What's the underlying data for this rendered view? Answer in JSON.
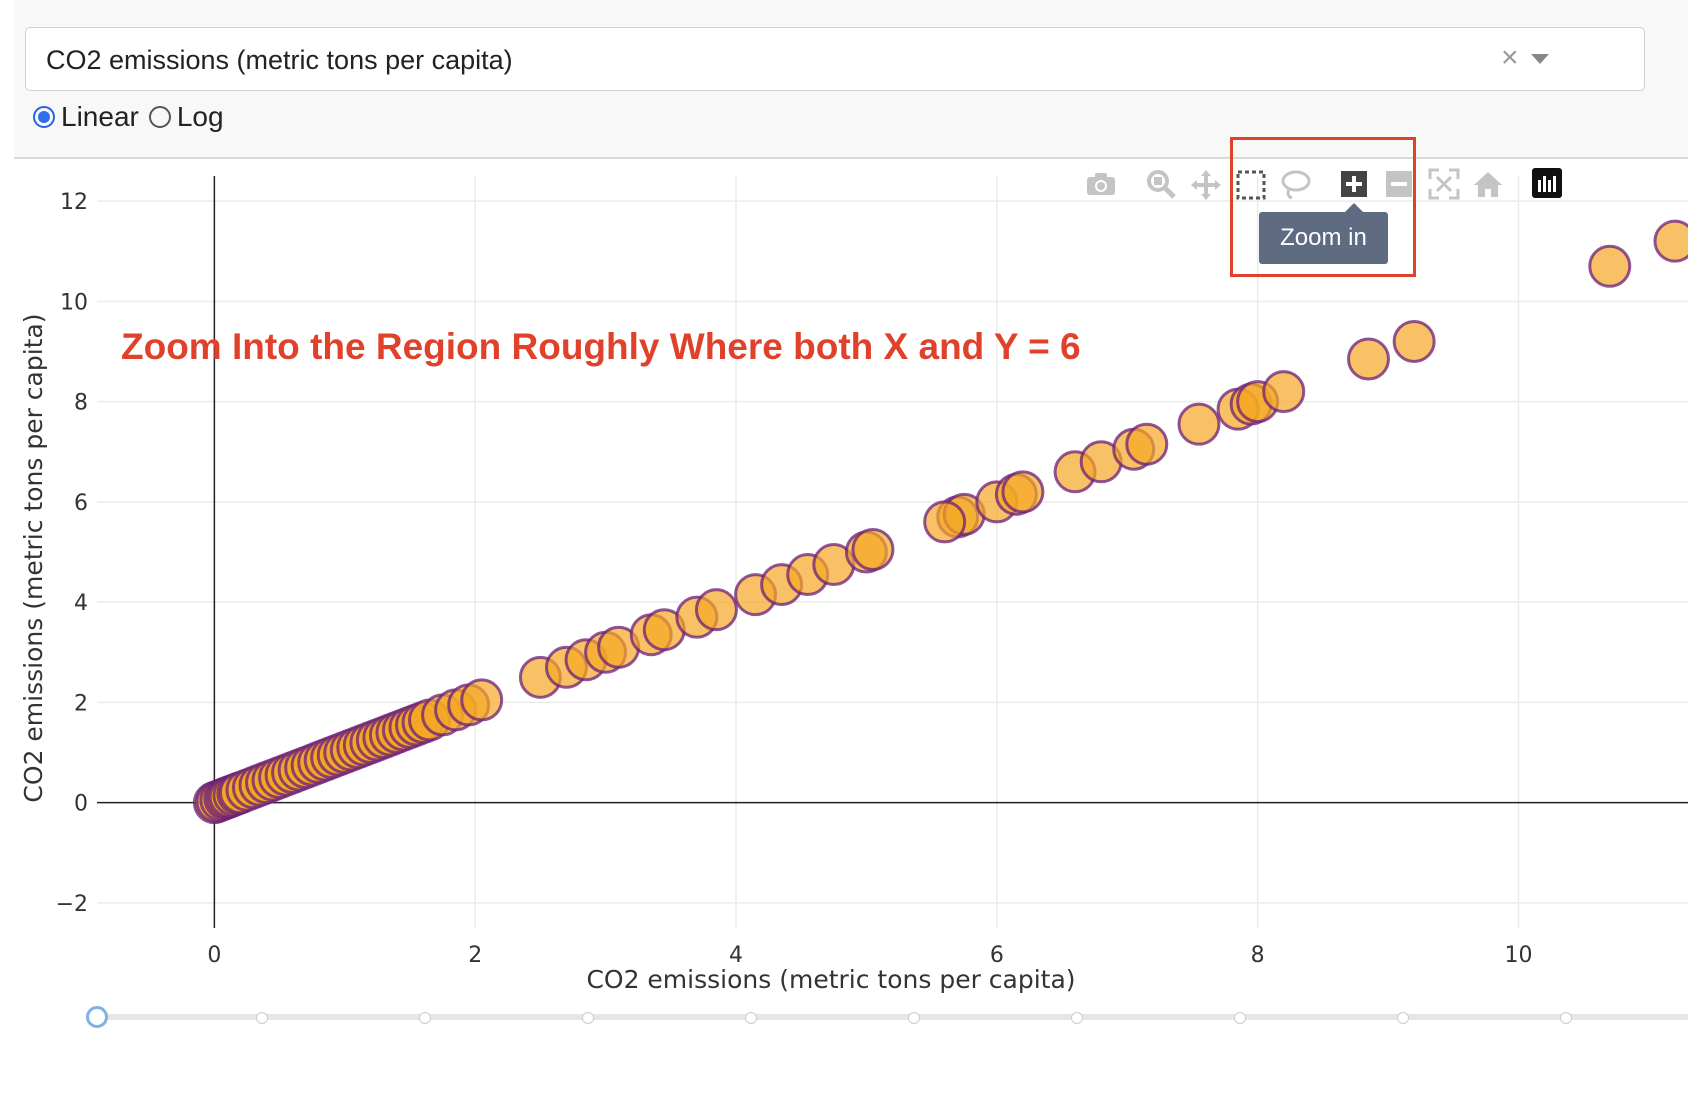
{
  "dropdown": {
    "selected": "CO2 emissions (metric tons per capita)",
    "clear_symbol": "×"
  },
  "scale_options": [
    {
      "label": "Linear",
      "checked": true
    },
    {
      "label": "Log",
      "checked": false
    }
  ],
  "modebar": {
    "buttons": [
      "camera-icon",
      "zoom-icon",
      "pan-icon",
      "box-select-icon",
      "lasso-select-icon",
      "zoom-in-icon",
      "zoom-out-icon",
      "autoscale-icon",
      "reset-axes-icon",
      "plotly-logo-icon"
    ],
    "tooltip": "Zoom in"
  },
  "annotation": "Zoom Into the Region Roughly Where both X and Y = 6",
  "colors": {
    "marker_fill": "#f5a623",
    "marker_outline": "#6b1f7a",
    "annotation": "#e0412b",
    "tooltip_bg": "#5f6b80"
  },
  "chart_data": {
    "type": "scatter",
    "xlabel": "CO2 emissions (metric tons per capita)",
    "ylabel": "CO2 emissions (metric tons per capita)",
    "xlim": [
      -0.9,
      11.3
    ],
    "ylim": [
      -2.5,
      12.5
    ],
    "xticks": [
      0,
      2,
      4,
      6,
      8,
      10
    ],
    "yticks": [
      -2,
      0,
      2,
      4,
      6,
      8,
      10,
      12
    ],
    "grid": true,
    "series": [
      {
        "x": [
          0,
          0.02,
          0.05,
          0.08,
          0.1,
          0.12,
          0.15,
          0.18,
          0.2,
          0.25,
          0.3,
          0.35,
          0.4,
          0.45,
          0.5,
          0.55,
          0.6,
          0.65,
          0.7,
          0.75,
          0.8,
          0.85,
          0.9,
          0.95,
          1.0,
          1.05,
          1.1,
          1.15,
          1.2,
          1.25,
          1.3,
          1.35,
          1.4,
          1.45,
          1.5,
          1.55,
          1.6,
          1.65,
          1.75,
          1.85,
          1.95,
          2.05,
          2.5,
          2.7,
          2.85,
          3.0,
          3.1,
          3.35,
          3.45,
          3.7,
          3.85,
          4.15,
          4.35,
          4.55,
          4.75,
          5.0,
          5.05,
          5.7,
          5.75,
          6.0,
          6.15,
          6.2,
          5.6,
          6.6,
          6.8,
          7.05,
          7.15,
          7.55,
          7.85,
          7.95,
          8.0,
          8.2,
          8.85,
          9.2,
          10.7,
          11.2
        ]
      }
    ]
  }
}
